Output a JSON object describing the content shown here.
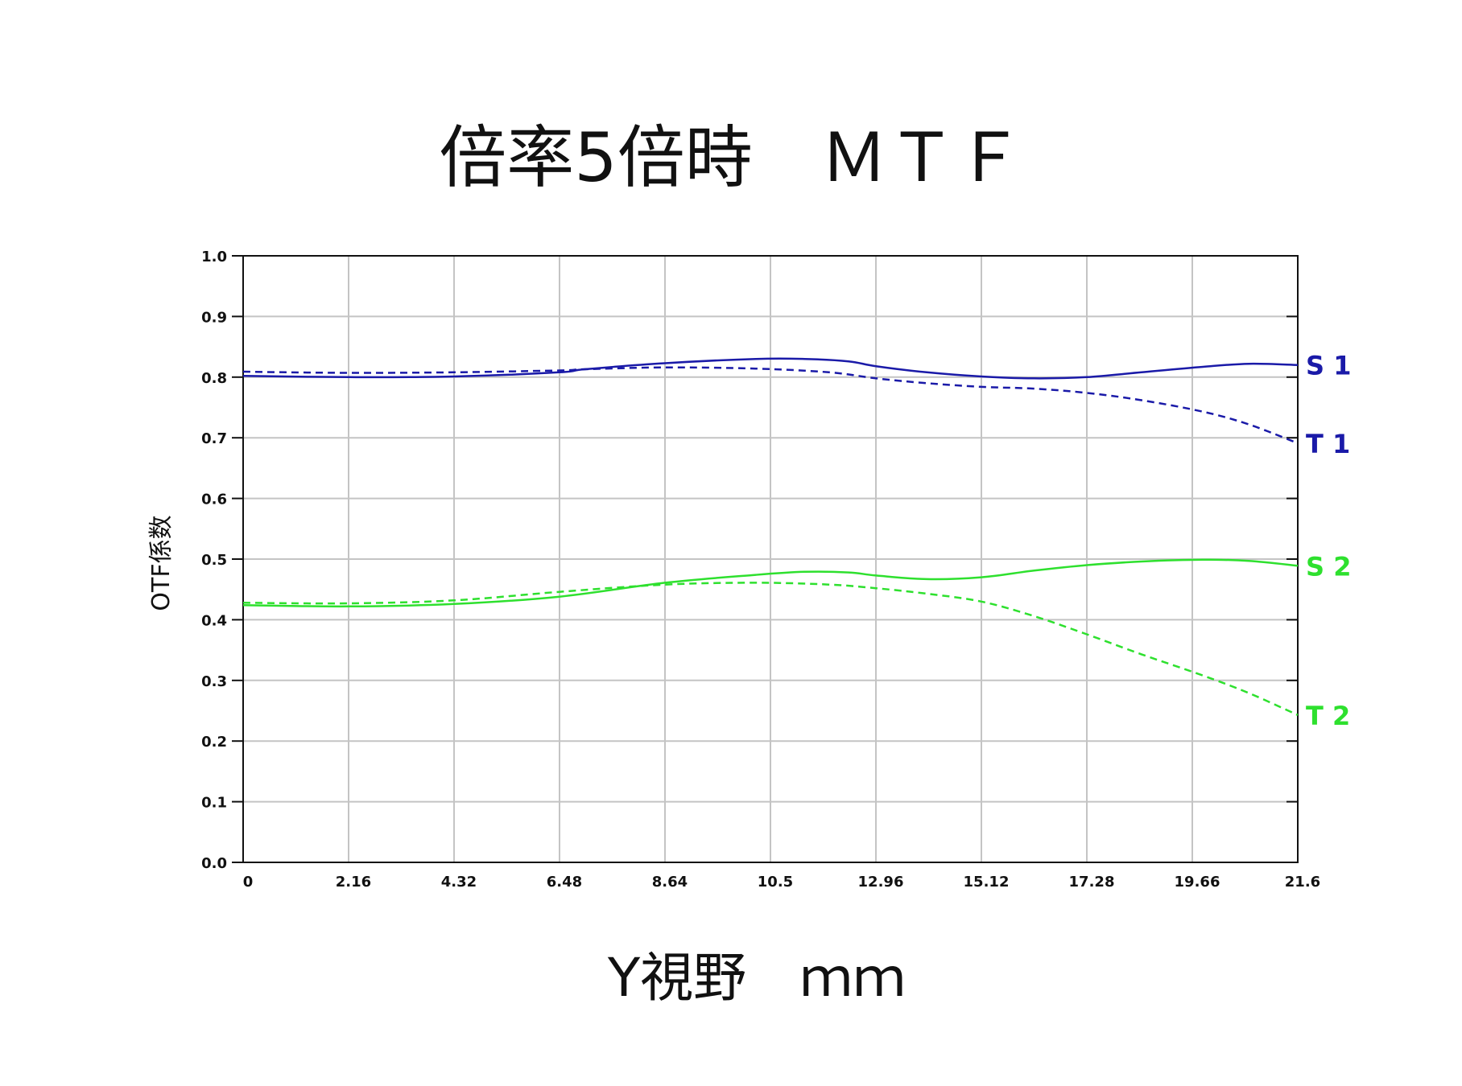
{
  "chart_data": {
    "type": "line",
    "title": "倍率5倍時　ＭＴＦ",
    "xlabel": "Y視野　ｍｍ",
    "ylabel": "OTF係数",
    "x_ticks": [
      "0",
      "2.16",
      "4.32",
      "6.48",
      "8.64",
      "10.5",
      "12.96",
      "15.12",
      "17.28",
      "19.66",
      "21.6"
    ],
    "y_ticks": [
      "0.0",
      "0.1",
      "0.2",
      "0.3",
      "0.4",
      "0.5",
      "0.6",
      "0.7",
      "0.8",
      "0.9",
      "1.0"
    ],
    "xlim": [
      0,
      21.6
    ],
    "ylim": [
      0,
      1.0
    ],
    "grid": true,
    "series": [
      {
        "name": "S 1",
        "color": "#1a1aa8",
        "dash": "solid",
        "points": [
          [
            0,
            0.802
          ],
          [
            2.16,
            0.8
          ],
          [
            4.32,
            0.801
          ],
          [
            6.48,
            0.808
          ],
          [
            7.0,
            0.813
          ],
          [
            8.64,
            0.823
          ],
          [
            10.5,
            0.83
          ],
          [
            11.5,
            0.83
          ],
          [
            12.4,
            0.826
          ],
          [
            12.96,
            0.818
          ],
          [
            14.0,
            0.808
          ],
          [
            15.12,
            0.801
          ],
          [
            16.2,
            0.798
          ],
          [
            17.28,
            0.8
          ],
          [
            18.4,
            0.808
          ],
          [
            19.66,
            0.817
          ],
          [
            20.6,
            0.822
          ],
          [
            21.6,
            0.82
          ]
        ]
      },
      {
        "name": "T 1",
        "color": "#1a1aa8",
        "dash": "dashed",
        "points": [
          [
            0,
            0.809
          ],
          [
            2.16,
            0.807
          ],
          [
            4.32,
            0.808
          ],
          [
            6.48,
            0.811
          ],
          [
            7.0,
            0.813
          ],
          [
            8.64,
            0.816
          ],
          [
            10.5,
            0.814
          ],
          [
            12.0,
            0.808
          ],
          [
            12.96,
            0.798
          ],
          [
            14.0,
            0.79
          ],
          [
            15.12,
            0.784
          ],
          [
            16.2,
            0.781
          ],
          [
            17.28,
            0.774
          ],
          [
            18.4,
            0.762
          ],
          [
            19.66,
            0.743
          ],
          [
            20.6,
            0.722
          ],
          [
            21.6,
            0.691
          ]
        ]
      },
      {
        "name": "S 2",
        "color": "#2ee02e",
        "dash": "solid",
        "points": [
          [
            0,
            0.424
          ],
          [
            2.16,
            0.422
          ],
          [
            4.32,
            0.426
          ],
          [
            6.48,
            0.438
          ],
          [
            8.64,
            0.461
          ],
          [
            10.5,
            0.474
          ],
          [
            11.5,
            0.479
          ],
          [
            12.4,
            0.478
          ],
          [
            12.96,
            0.473
          ],
          [
            14.0,
            0.467
          ],
          [
            15.12,
            0.47
          ],
          [
            16.2,
            0.481
          ],
          [
            17.28,
            0.49
          ],
          [
            18.4,
            0.496
          ],
          [
            19.66,
            0.499
          ],
          [
            20.6,
            0.497
          ],
          [
            21.6,
            0.489
          ]
        ]
      },
      {
        "name": "T 2",
        "color": "#2ee02e",
        "dash": "dashed",
        "points": [
          [
            0,
            0.428
          ],
          [
            2.16,
            0.427
          ],
          [
            4.32,
            0.432
          ],
          [
            6.48,
            0.446
          ],
          [
            8.64,
            0.458
          ],
          [
            10.5,
            0.461
          ],
          [
            12.0,
            0.458
          ],
          [
            12.96,
            0.452
          ],
          [
            14.0,
            0.443
          ],
          [
            15.12,
            0.43
          ],
          [
            16.2,
            0.406
          ],
          [
            17.28,
            0.376
          ],
          [
            18.4,
            0.343
          ],
          [
            19.66,
            0.308
          ],
          [
            20.6,
            0.279
          ],
          [
            21.6,
            0.243
          ]
        ]
      }
    ]
  }
}
